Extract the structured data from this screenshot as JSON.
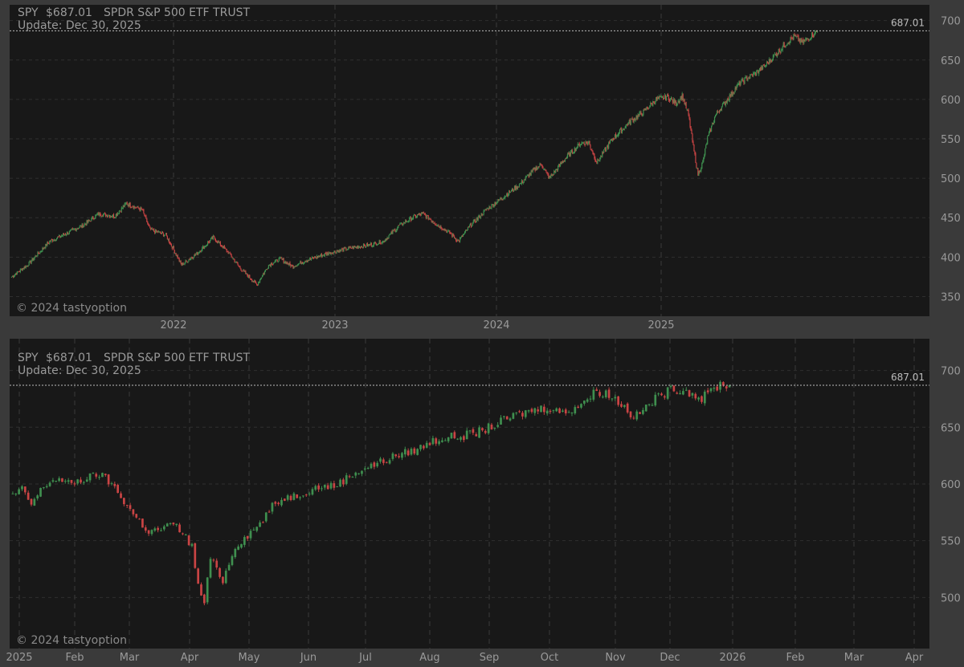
{
  "colors": {
    "background": "#3a3a3a",
    "plot_bg": "#181818",
    "grid": "#2f2f2f",
    "text": "#9a9a9a",
    "up": "#3f8f4f",
    "down": "#c94444",
    "price_line": "#bbbbbb"
  },
  "chart_data": [
    {
      "type": "candlestick",
      "header": {
        "symbol": "SPY",
        "price": "$687.01",
        "name": "SPDR S&P 500 ETF TRUST",
        "update": "Update: Dec 30, 2025"
      },
      "watermark": "© 2024 tastyoption",
      "last_price": 687.01,
      "last_price_label": "687.01",
      "ylim": [
        325,
        720
      ],
      "y_ticks": [
        350,
        400,
        450,
        500,
        550,
        600,
        650,
        700
      ],
      "x_ticks": [
        "2022",
        "2023",
        "2024",
        "2025"
      ],
      "anchors": [
        {
          "i": 0,
          "v": 375
        },
        {
          "i": 20,
          "v": 390
        },
        {
          "i": 48,
          "v": 420
        },
        {
          "i": 90,
          "v": 440
        },
        {
          "i": 110,
          "v": 455
        },
        {
          "i": 130,
          "v": 452
        },
        {
          "i": 145,
          "v": 468
        },
        {
          "i": 165,
          "v": 460
        },
        {
          "i": 175,
          "v": 435
        },
        {
          "i": 195,
          "v": 428
        },
        {
          "i": 215,
          "v": 390
        },
        {
          "i": 235,
          "v": 405
        },
        {
          "i": 255,
          "v": 425
        },
        {
          "i": 275,
          "v": 405
        },
        {
          "i": 290,
          "v": 385
        },
        {
          "i": 310,
          "v": 365
        },
        {
          "i": 325,
          "v": 390
        },
        {
          "i": 340,
          "v": 398
        },
        {
          "i": 355,
          "v": 388
        },
        {
          "i": 370,
          "v": 395
        },
        {
          "i": 385,
          "v": 400
        },
        {
          "i": 400,
          "v": 405
        },
        {
          "i": 430,
          "v": 412
        },
        {
          "i": 450,
          "v": 415
        },
        {
          "i": 470,
          "v": 420
        },
        {
          "i": 490,
          "v": 440
        },
        {
          "i": 510,
          "v": 452
        },
        {
          "i": 520,
          "v": 455
        },
        {
          "i": 540,
          "v": 440
        },
        {
          "i": 555,
          "v": 430
        },
        {
          "i": 565,
          "v": 420
        },
        {
          "i": 580,
          "v": 440
        },
        {
          "i": 600,
          "v": 460
        },
        {
          "i": 620,
          "v": 475
        },
        {
          "i": 640,
          "v": 490
        },
        {
          "i": 660,
          "v": 510
        },
        {
          "i": 670,
          "v": 518
        },
        {
          "i": 680,
          "v": 500
        },
        {
          "i": 700,
          "v": 525
        },
        {
          "i": 720,
          "v": 545
        },
        {
          "i": 730,
          "v": 545
        },
        {
          "i": 740,
          "v": 520
        },
        {
          "i": 760,
          "v": 550
        },
        {
          "i": 780,
          "v": 570
        },
        {
          "i": 800,
          "v": 585
        },
        {
          "i": 815,
          "v": 600
        },
        {
          "i": 830,
          "v": 603
        },
        {
          "i": 840,
          "v": 595
        },
        {
          "i": 848,
          "v": 605
        },
        {
          "i": 856,
          "v": 580
        },
        {
          "i": 862,
          "v": 540
        },
        {
          "i": 868,
          "v": 505
        },
        {
          "i": 874,
          "v": 520
        },
        {
          "i": 880,
          "v": 550
        },
        {
          "i": 890,
          "v": 580
        },
        {
          "i": 920,
          "v": 620
        },
        {
          "i": 950,
          "v": 640
        },
        {
          "i": 980,
          "v": 672
        },
        {
          "i": 990,
          "v": 680
        },
        {
          "i": 1000,
          "v": 672
        },
        {
          "i": 1010,
          "v": 680
        },
        {
          "i": 1019,
          "v": 687
        }
      ],
      "n_bars": 1020
    },
    {
      "type": "candlestick",
      "header": {
        "symbol": "SPY",
        "price": "$687.01",
        "name": "SPDR S&P 500 ETF TRUST",
        "update": "Update: Dec 30, 2025"
      },
      "watermark": "© 2024 tastyoption",
      "last_price": 687.01,
      "last_price_label": "687.01",
      "ylim": [
        455,
        728
      ],
      "y_ticks": [
        500,
        550,
        600,
        650,
        700
      ],
      "x_ticks": [
        "2025",
        "Feb",
        "Mar",
        "Apr",
        "May",
        "Jun",
        "Jul",
        "Aug",
        "Sep",
        "Oct",
        "Nov",
        "Dec",
        "2026",
        "Feb",
        "Mar",
        "Apr"
      ],
      "anchors": [
        {
          "i": 0,
          "v": 590
        },
        {
          "i": 3,
          "v": 595
        },
        {
          "i": 6,
          "v": 582
        },
        {
          "i": 10,
          "v": 598
        },
        {
          "i": 14,
          "v": 605
        },
        {
          "i": 18,
          "v": 600
        },
        {
          "i": 24,
          "v": 605
        },
        {
          "i": 28,
          "v": 609
        },
        {
          "i": 32,
          "v": 600
        },
        {
          "i": 36,
          "v": 585
        },
        {
          "i": 40,
          "v": 570
        },
        {
          "i": 44,
          "v": 558
        },
        {
          "i": 48,
          "v": 560
        },
        {
          "i": 52,
          "v": 565
        },
        {
          "i": 55,
          "v": 557
        },
        {
          "i": 58,
          "v": 545
        },
        {
          "i": 60,
          "v": 510
        },
        {
          "i": 62,
          "v": 495
        },
        {
          "i": 64,
          "v": 535
        },
        {
          "i": 66,
          "v": 525
        },
        {
          "i": 68,
          "v": 515
        },
        {
          "i": 70,
          "v": 530
        },
        {
          "i": 72,
          "v": 545
        },
        {
          "i": 76,
          "v": 555
        },
        {
          "i": 80,
          "v": 565
        },
        {
          "i": 84,
          "v": 580
        },
        {
          "i": 88,
          "v": 588
        },
        {
          "i": 92,
          "v": 590
        },
        {
          "i": 96,
          "v": 595
        },
        {
          "i": 100,
          "v": 598
        },
        {
          "i": 104,
          "v": 598
        },
        {
          "i": 108,
          "v": 605
        },
        {
          "i": 112,
          "v": 612
        },
        {
          "i": 118,
          "v": 618
        },
        {
          "i": 124,
          "v": 625
        },
        {
          "i": 128,
          "v": 628
        },
        {
          "i": 132,
          "v": 632
        },
        {
          "i": 136,
          "v": 638
        },
        {
          "i": 140,
          "v": 641
        },
        {
          "i": 145,
          "v": 642
        },
        {
          "i": 150,
          "v": 645
        },
        {
          "i": 156,
          "v": 652
        },
        {
          "i": 162,
          "v": 660
        },
        {
          "i": 168,
          "v": 665
        },
        {
          "i": 174,
          "v": 668
        },
        {
          "i": 178,
          "v": 662
        },
        {
          "i": 182,
          "v": 668
        },
        {
          "i": 186,
          "v": 675
        },
        {
          "i": 189,
          "v": 682
        },
        {
          "i": 192,
          "v": 680
        },
        {
          "i": 195,
          "v": 675
        },
        {
          "i": 198,
          "v": 668
        },
        {
          "i": 200,
          "v": 662
        },
        {
          "i": 202,
          "v": 660
        },
        {
          "i": 205,
          "v": 668
        },
        {
          "i": 208,
          "v": 675
        },
        {
          "i": 212,
          "v": 682
        },
        {
          "i": 216,
          "v": 684
        },
        {
          "i": 220,
          "v": 680
        },
        {
          "i": 223,
          "v": 675
        },
        {
          "i": 226,
          "v": 682
        },
        {
          "i": 229,
          "v": 688
        },
        {
          "i": 232,
          "v": 687
        }
      ],
      "n_bars": 233
    }
  ]
}
